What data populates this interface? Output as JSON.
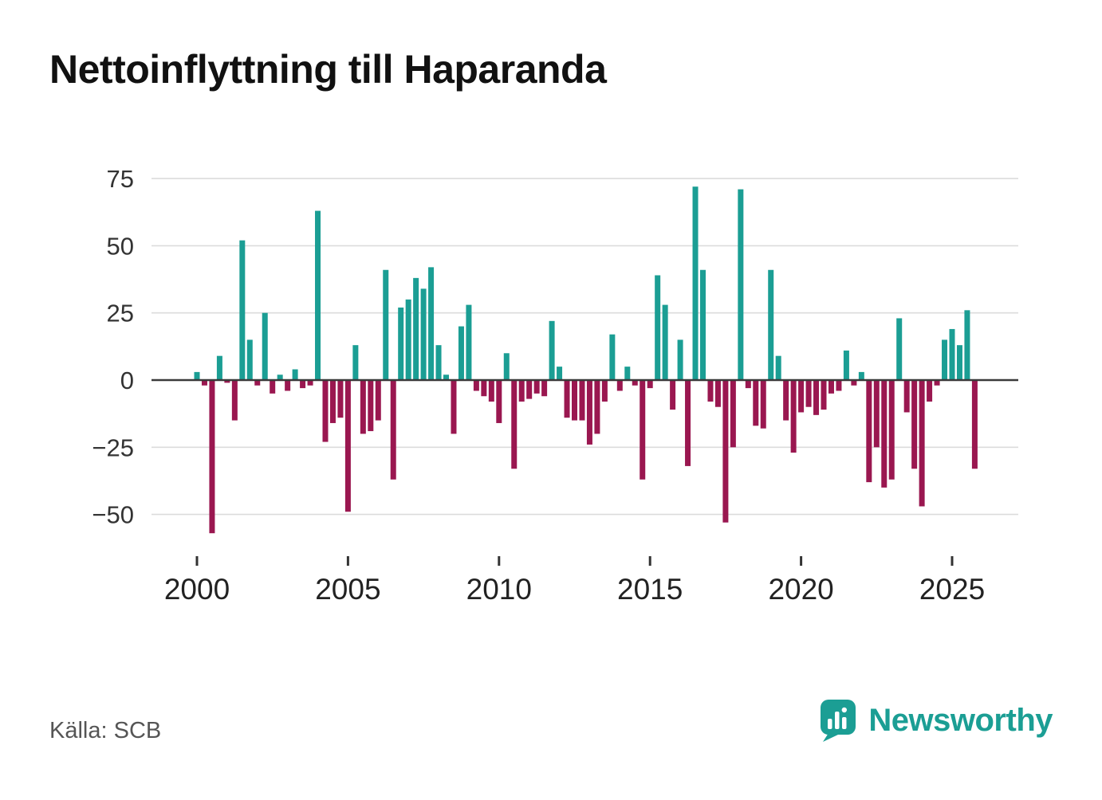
{
  "title": "Nettoinflyttning till Haparanda",
  "source": "Källa: SCB",
  "brand": {
    "name": "Newsworthy",
    "color": "#1b9e94"
  },
  "colors": {
    "positive_bar": "#1b9e94",
    "negative_bar": "#9a1750",
    "grid_line": "#dcdcdc",
    "zero_line": "#3a3a3a",
    "axis_tick": "#333333",
    "y_label_text": "#333333",
    "x_label_text": "#222222",
    "title_text": "#111111",
    "source_text": "#555555"
  },
  "chart_data": {
    "type": "bar",
    "title": "Nettoinflyttning till Haparanda",
    "xlabel": "",
    "ylabel": "",
    "period": "quarterly",
    "x_start_year": 2000,
    "x_ticks": [
      2000,
      2005,
      2010,
      2015,
      2020,
      2025
    ],
    "y_ticks": [
      75,
      50,
      25,
      0,
      -25,
      -50
    ],
    "ylim": [
      -62,
      82
    ],
    "grid": true,
    "legend": "none",
    "series_by_year": [
      {
        "year": 2000,
        "values": [
          3,
          -2,
          -57,
          9
        ]
      },
      {
        "year": 2001,
        "values": [
          -1,
          -15,
          52,
          15
        ]
      },
      {
        "year": 2002,
        "values": [
          -2,
          25,
          -5,
          2
        ]
      },
      {
        "year": 2003,
        "values": [
          -4,
          4,
          -3,
          -2
        ]
      },
      {
        "year": 2004,
        "values": [
          63,
          -23,
          -16,
          -14
        ]
      },
      {
        "year": 2005,
        "values": [
          -49,
          13,
          -20,
          -19
        ]
      },
      {
        "year": 2006,
        "values": [
          -15,
          41,
          -37,
          27
        ]
      },
      {
        "year": 2007,
        "values": [
          30,
          38,
          34,
          42
        ]
      },
      {
        "year": 2008,
        "values": [
          13,
          2,
          -20,
          20
        ]
      },
      {
        "year": 2009,
        "values": [
          28,
          -4,
          -6,
          -8
        ]
      },
      {
        "year": 2010,
        "values": [
          -16,
          10,
          -33,
          -8
        ]
      },
      {
        "year": 2011,
        "values": [
          -7,
          -5,
          -6,
          22
        ]
      },
      {
        "year": 2012,
        "values": [
          5,
          -14,
          -15,
          -15
        ]
      },
      {
        "year": 2013,
        "values": [
          -24,
          -20,
          -8,
          17
        ]
      },
      {
        "year": 2014,
        "values": [
          -4,
          5,
          -2,
          -37
        ]
      },
      {
        "year": 2015,
        "values": [
          -3,
          39,
          28,
          -11
        ]
      },
      {
        "year": 2016,
        "values": [
          15,
          -32,
          72,
          41
        ]
      },
      {
        "year": 2017,
        "values": [
          -8,
          -10,
          -53,
          -25
        ]
      },
      {
        "year": 2018,
        "values": [
          71,
          -3,
          -17,
          -18
        ]
      },
      {
        "year": 2019,
        "values": [
          41,
          9,
          -15,
          -27
        ]
      },
      {
        "year": 2020,
        "values": [
          -12,
          -10,
          -13,
          -11
        ]
      },
      {
        "year": 2021,
        "values": [
          -5,
          -4,
          11,
          -2
        ]
      },
      {
        "year": 2022,
        "values": [
          3,
          -38,
          -25,
          -40
        ]
      },
      {
        "year": 2023,
        "values": [
          -37,
          23,
          -12,
          -33
        ]
      },
      {
        "year": 2024,
        "values": [
          -47,
          -8,
          -2,
          15
        ]
      },
      {
        "year": 2025,
        "values": [
          19,
          13,
          26,
          -33
        ]
      }
    ]
  }
}
